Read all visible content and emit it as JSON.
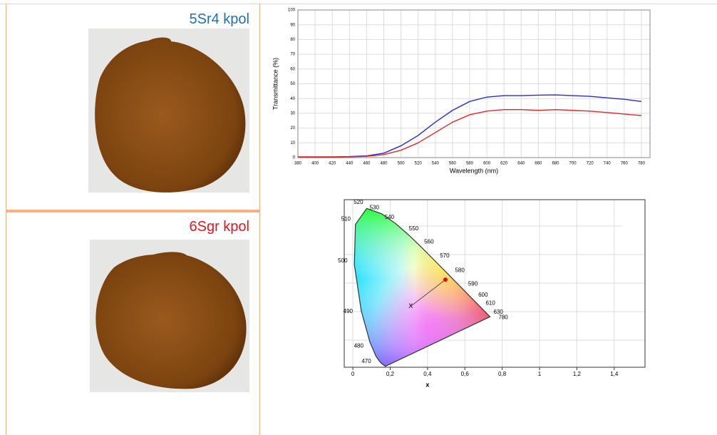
{
  "samples": [
    {
      "label": "5Sr4 kpol",
      "color": "#1f6fb5"
    },
    {
      "label": "6Sgr kpol",
      "color": "#e8141b"
    }
  ],
  "chart_data": [
    {
      "type": "line",
      "x_label": "Wavelength (nm)",
      "y_label": "Transmittance (%)",
      "x": [
        380,
        400,
        420,
        440,
        460,
        480,
        500,
        520,
        540,
        560,
        580,
        600,
        620,
        640,
        660,
        680,
        700,
        720,
        740,
        760,
        780
      ],
      "series": [
        {
          "color": "#2a2ad8",
          "values": [
            0.5,
            0.5,
            0.5,
            0.7,
            1.2,
            3,
            8,
            15,
            24,
            32,
            38,
            41,
            42,
            42,
            42.3,
            42.5,
            42,
            41.5,
            40.5,
            39.5,
            38
          ]
        },
        {
          "color": "#e02828",
          "values": [
            0.3,
            0.3,
            0.3,
            0.5,
            0.9,
            2,
            5,
            10,
            17,
            24,
            29,
            31.5,
            32.5,
            32.5,
            32,
            32.5,
            32,
            31.5,
            30.5,
            29.5,
            28.5
          ]
        }
      ],
      "xlim": [
        380,
        790
      ],
      "ylim": [
        0,
        100
      ],
      "xticks": [
        380,
        400,
        420,
        440,
        460,
        480,
        500,
        520,
        540,
        560,
        580,
        600,
        620,
        640,
        660,
        680,
        700,
        720,
        740,
        760,
        780
      ],
      "yticks": [
        0,
        10,
        20,
        30,
        40,
        50,
        60,
        70,
        80,
        90,
        100
      ],
      "grid": true
    },
    {
      "type": "chromaticity",
      "x_label": "x",
      "xlim": [
        -0.046,
        1.565
      ],
      "ylim": [
        0,
        0.88
      ],
      "xticks": [
        0,
        {
          "value": 0.2,
          "label": "0,2"
        },
        {
          "value": 0.4,
          "label": "0,4"
        },
        {
          "value": 0.6,
          "label": "0,6"
        },
        {
          "value": 0.8,
          "label": "0,8"
        },
        1,
        {
          "value": 1.2,
          "label": "1,2"
        },
        {
          "value": 1.4,
          "label": "1,4"
        }
      ],
      "grid": true,
      "locus": {
        "labels": [
          null,
          null,
          null,
          "470",
          "480",
          "490",
          "500",
          "510",
          "520",
          "530",
          "540",
          "550",
          "560",
          "570",
          "580",
          "590",
          "600",
          "610",
          null,
          "630",
          "780"
        ],
        "x": [
          0.1741,
          0.1566,
          0.144,
          0.1241,
          0.0913,
          0.0454,
          0.0082,
          0.0139,
          0.0743,
          0.1547,
          0.2296,
          0.3016,
          0.3731,
          0.4441,
          0.5125,
          0.5752,
          0.627,
          0.6658,
          0.6915,
          0.7079,
          0.7347
        ],
        "y": [
          0.005,
          0.0177,
          0.0297,
          0.0578,
          0.1327,
          0.295,
          0.5384,
          0.7502,
          0.8338,
          0.8059,
          0.7543,
          0.6923,
          0.6245,
          0.5547,
          0.4866,
          0.4242,
          0.3725,
          0.334,
          0.3083,
          0.292,
          0.2653
        ]
      },
      "white_point": {
        "label": "X",
        "x": 0.31,
        "y": 0.32
      },
      "sample_point": {
        "color": "#e01010",
        "x": 0.496,
        "y": 0.46
      }
    }
  ]
}
